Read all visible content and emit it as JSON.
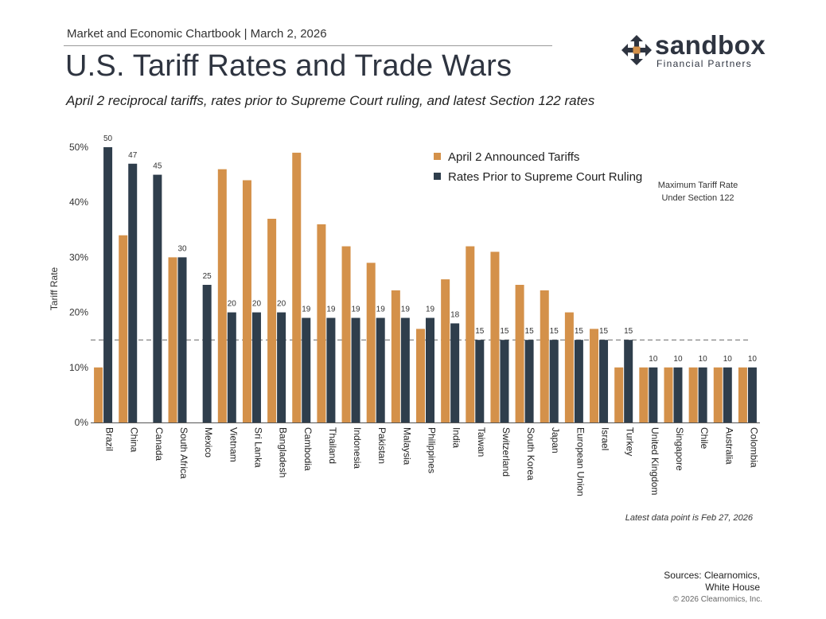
{
  "header": {
    "kicker": "Market and Economic Chartbook | March 2, 2026",
    "title": "U.S. Tariff Rates and Trade Wars",
    "subtitle": "April 2 reciprocal tariffs, rates prior to Supreme Court ruling, and latest Section 122 rates"
  },
  "logo": {
    "word": "sandbox",
    "sub": "Financial Partners"
  },
  "chart_data": {
    "type": "bar",
    "ylabel": "Tariff Rate",
    "ylim": [
      0,
      50
    ],
    "yticks": [
      0,
      10,
      20,
      30,
      40,
      50
    ],
    "ytick_labels": [
      "0%",
      "10%",
      "20%",
      "30%",
      "40%",
      "50%"
    ],
    "categories": [
      "Brazil",
      "China",
      "Canada",
      "South Africa",
      "Mexico",
      "Vietnam",
      "Sri Lanka",
      "Bangladesh",
      "Cambodia",
      "Thailand",
      "Indonesia",
      "Pakistan",
      "Malaysia",
      "Philippines",
      "India",
      "Taiwan",
      "Switzerland",
      "South Korea",
      "Japan",
      "European Union",
      "Israel",
      "Turkey",
      "United Kingdom",
      "Singapore",
      "Chile",
      "Australia",
      "Colombia"
    ],
    "series": [
      {
        "name": "April 2 Announced Tariffs",
        "color": "#d4914a",
        "values": [
          10,
          34,
          0,
          30,
          0,
          46,
          44,
          37,
          49,
          36,
          32,
          29,
          24,
          17,
          26,
          32,
          31,
          25,
          24,
          20,
          17,
          10,
          10,
          10,
          10,
          10,
          10
        ]
      },
      {
        "name": "Rates Prior to Supreme Court Ruling",
        "color": "#2f3e4c",
        "values": [
          50,
          47,
          45,
          30,
          25,
          20,
          20,
          20,
          19,
          19,
          19,
          19,
          19,
          19,
          18,
          15,
          15,
          15,
          15,
          15,
          15,
          15,
          10,
          10,
          10,
          10,
          10
        ]
      }
    ],
    "data_labels": [
      "50",
      "47",
      "45",
      "30",
      "25",
      "20",
      "20",
      "20",
      "19",
      "19",
      "19",
      "19",
      "19",
      "19",
      "18",
      "15",
      "15",
      "15",
      "15",
      "15",
      "15",
      "15",
      "10",
      "10",
      "10",
      "10",
      "10"
    ],
    "reference_line": {
      "value": 15,
      "label_lines": [
        "Maximum Tariff Rate",
        "Under Section 122"
      ]
    },
    "legend_placement": "top-right",
    "grid": false
  },
  "footnote": "Latest data point is Feb 27, 2026",
  "sources": [
    "Sources: Clearnomics,",
    "White House"
  ],
  "copyright": "© 2026 Clearnomics, Inc."
}
